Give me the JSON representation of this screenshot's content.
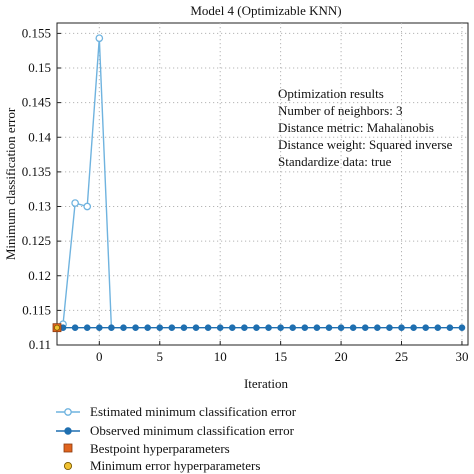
{
  "chart_data": {
    "type": "line",
    "title": "Model 4 (Optimizable KNN)",
    "xlabel": "Iteration",
    "ylabel": "Minimum classification error",
    "xlim": [
      -3.5,
      30.5
    ],
    "ylim": [
      0.11,
      0.1565
    ],
    "xticks": [
      0,
      5,
      10,
      15,
      20,
      25,
      30
    ],
    "yticks": [
      0.11,
      0.115,
      0.12,
      0.125,
      0.13,
      0.135,
      0.14,
      0.145,
      0.15,
      0.155
    ],
    "ytick_labels": [
      "0.11",
      "0.115",
      "0.12",
      "0.125",
      "0.13",
      "0.135",
      "0.14",
      "0.145",
      "0.15",
      "0.155"
    ],
    "grid": true,
    "estimated_series": {
      "name": "Estimated minimum classification error",
      "color": "#6fb3df",
      "x": [
        -3,
        -2,
        -1,
        0,
        1,
        2
      ],
      "y": [
        0.113,
        0.1305,
        0.13,
        0.1543,
        0.1125,
        0.1125
      ]
    },
    "observed_series": {
      "name": "Observed minimum classification error",
      "color": "#1f6fb0",
      "x": [
        -3,
        -2,
        -1,
        0,
        1,
        2,
        3,
        4,
        5,
        6,
        7,
        8,
        9,
        10,
        11,
        12,
        13,
        14,
        15,
        16,
        17,
        18,
        19,
        20,
        21,
        22,
        23,
        24,
        25,
        26,
        27,
        28,
        29,
        30
      ],
      "y": [
        0.1125,
        0.1125,
        0.1125,
        0.1125,
        0.1125,
        0.1125,
        0.1125,
        0.1125,
        0.1125,
        0.1125,
        0.1125,
        0.1125,
        0.1125,
        0.1125,
        0.1125,
        0.1125,
        0.1125,
        0.1125,
        0.1125,
        0.1125,
        0.1125,
        0.1125,
        0.1125,
        0.1125,
        0.1125,
        0.1125,
        0.1125,
        0.1125,
        0.1125,
        0.1125,
        0.1125,
        0.1125,
        0.1125,
        0.1125
      ]
    },
    "bestpoint": {
      "name": "Bestpoint hyperparameters",
      "x": -3.5,
      "y": 0.1125,
      "color": "#e0641e"
    },
    "min_error_point": {
      "name": "Minimum error hyperparameters",
      "x": -3.5,
      "y": 0.1125,
      "color": "#f1c232"
    },
    "annotation": [
      "Optimization results",
      "Number of neighbors: 3",
      "Distance metric: Mahalanobis",
      "Distance weight: Squared inverse",
      "Standardize data: true"
    ]
  }
}
